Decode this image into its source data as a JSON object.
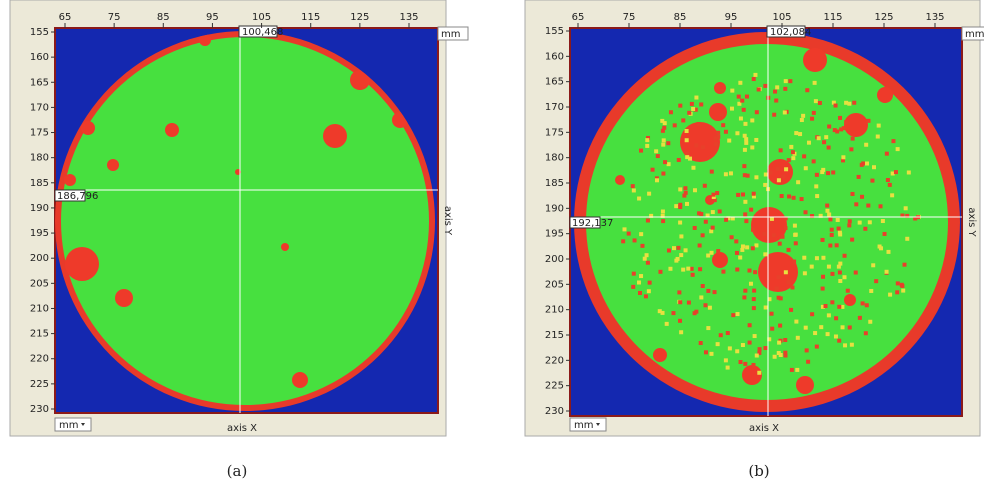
{
  "panels": [
    {
      "x_tick_labels": [
        65,
        75,
        85,
        95,
        105,
        115,
        125,
        135
      ],
      "y_tick_labels": [
        155,
        160,
        165,
        170,
        175,
        180,
        185,
        190,
        195,
        200,
        205,
        210,
        215,
        220,
        225,
        230
      ],
      "cursor_x_label": "100,468",
      "cursor_y_label": "186,796",
      "unit_top": "mm",
      "unit_bottom": "mm",
      "x_axis_label": "axis X",
      "y_axis_label": "axis Y",
      "caption": "(a)"
    },
    {
      "x_tick_labels": [
        65,
        75,
        85,
        95,
        105,
        115,
        125,
        135
      ],
      "y_tick_labels": [
        155,
        160,
        165,
        170,
        175,
        180,
        185,
        190,
        195,
        200,
        205,
        210,
        215,
        220,
        225,
        230
      ],
      "cursor_x_label": "102,084",
      "cursor_y_label": "192,137",
      "unit_top": "mm",
      "unit_bottom": "mm",
      "x_axis_label": "axis X",
      "y_axis_label": "axis Y",
      "caption": "(b)"
    }
  ]
}
